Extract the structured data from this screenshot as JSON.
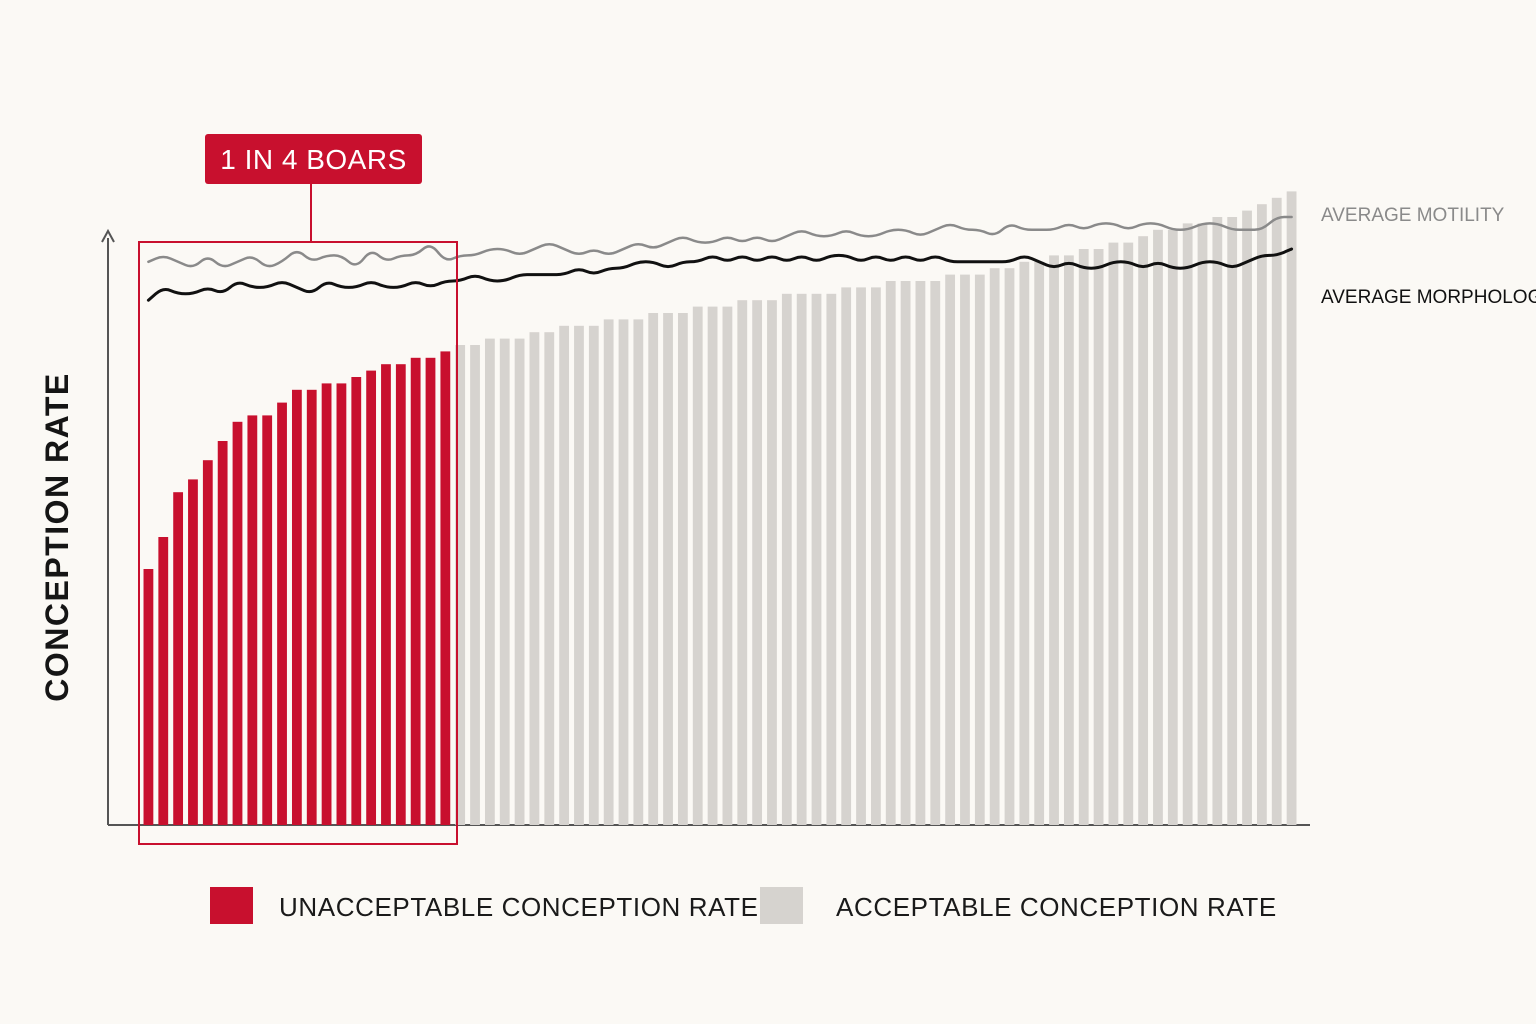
{
  "chart_data": {
    "type": "bar",
    "ylabel": "CONCEPTION RATE",
    "xlabel": "",
    "ylim": [
      0,
      100
    ],
    "grid": false,
    "callout": {
      "label": "1 IN 4 BOARS",
      "group": "unacceptable"
    },
    "colors": {
      "unacceptable": "#c8102e",
      "acceptable": "#d6d3cf",
      "motility": "#8a8a8a",
      "morphology": "#111111",
      "axis": "#555555"
    },
    "legend": {
      "position": "bottom",
      "items": [
        {
          "key": "unacceptable",
          "label": "UNACCEPTABLE CONCEPTION RATE",
          "color": "#c8102e"
        },
        {
          "key": "acceptable",
          "label": "ACCEPTABLE CONCEPTION RATE",
          "color": "#d6d3cf"
        }
      ]
    },
    "bar_groups": {
      "unacceptable_count": 21,
      "acceptable_count": 57
    },
    "bars": [
      40,
      45,
      52,
      54,
      57,
      60,
      63,
      64,
      64,
      66,
      68,
      68,
      69,
      69,
      70,
      71,
      72,
      72,
      73,
      73,
      74,
      75,
      75,
      76,
      76,
      76,
      77,
      77,
      78,
      78,
      78,
      79,
      79,
      79,
      80,
      80,
      80,
      81,
      81,
      81,
      82,
      82,
      82,
      83,
      83,
      83,
      83,
      84,
      84,
      84,
      85,
      85,
      85,
      85,
      86,
      86,
      86,
      87,
      87,
      88,
      88,
      89,
      89,
      90,
      90,
      91,
      91,
      92,
      93,
      93,
      94,
      94,
      95,
      95,
      96,
      97,
      98,
      99
    ],
    "series": [
      {
        "name": "AVERAGE MOTILITY",
        "values": [
          88,
          89,
          88,
          87,
          89,
          87,
          88,
          89,
          87,
          88,
          90,
          88,
          89,
          89,
          87,
          90,
          88,
          89,
          89,
          91,
          88,
          89,
          89,
          90,
          90,
          89,
          90,
          91,
          90,
          89,
          90,
          89,
          90,
          91,
          90,
          91,
          92,
          91,
          91,
          92,
          91,
          92,
          91,
          92,
          93,
          92,
          92,
          93,
          92,
          92,
          93,
          93,
          92,
          93,
          94,
          93,
          93,
          92,
          94,
          93,
          93,
          93,
          94,
          93,
          94,
          94,
          93,
          94,
          94,
          93,
          93,
          94,
          94,
          93,
          93,
          93,
          95,
          95
        ]
      },
      {
        "name": "AVERAGE MORPHOLOGY",
        "values": [
          82,
          84,
          83,
          83,
          84,
          83,
          85,
          84,
          84,
          85,
          84,
          83,
          85,
          84,
          84,
          85,
          84,
          84,
          85,
          84,
          85,
          85,
          86,
          85,
          85,
          86,
          86,
          86,
          86,
          87,
          86,
          87,
          87,
          88,
          88,
          87,
          88,
          88,
          89,
          88,
          89,
          88,
          89,
          88,
          89,
          88,
          89,
          89,
          88,
          89,
          88,
          89,
          88,
          89,
          88,
          88,
          88,
          88,
          88,
          89,
          88,
          87,
          88,
          87,
          87,
          88,
          88,
          87,
          88,
          87,
          87,
          88,
          88,
          87,
          88,
          89,
          89,
          90
        ]
      }
    ]
  }
}
